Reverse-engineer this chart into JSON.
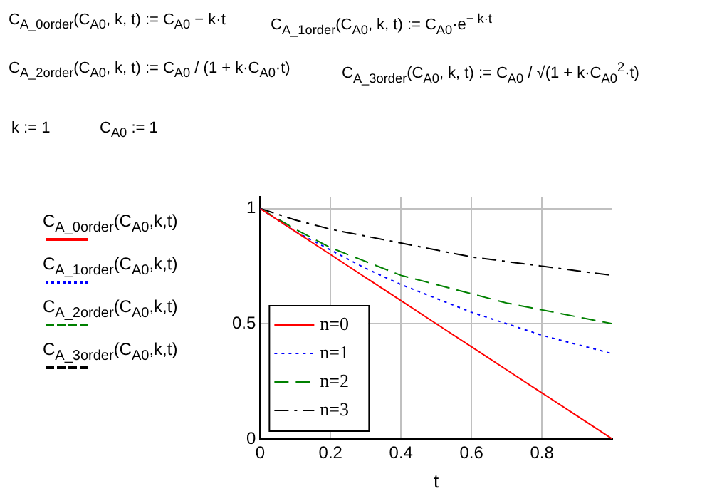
{
  "chart_data": {
    "type": "line",
    "annotations": [
      "C$_{A_0order}$(C$_{A0}$, k, t) := C$_{A0}$ − k·t",
      "C$_{A_1order}$(C$_{A0}$, k, t) := C$_{A0}$·e$^{− k·t}$",
      "C$_{A_2order}$(C$_{A0}$, k, t) := C$_{A0}$ / (1 + k·C$_{A0}$·t)",
      "C$_{A_3order}$(C$_{A0}$, k, t) := C$_{A0}$ / √(1 + k·C$_{A0}$$^{2}$·t)",
      "k := 1",
      "C$_{A0}$ := 1"
    ],
    "ylabel": "C$_{A_0order}$(C$_{A0}$,k,t)\nC$_{A_1order}$(C$_{A0}$,k,t)\nC$_{A_2order}$(C$_{A0}$,k,t)\nC$_{A_3order}$(C$_{A0}$,k,t)",
    "xlabel": "t",
    "x": [
      0,
      0.1,
      0.2,
      0.3,
      0.4,
      0.5,
      0.6,
      0.7,
      0.8,
      0.9,
      1
    ],
    "series": [
      {
        "name": "n=0",
        "color": "#ff0000",
        "line_style": "solid",
        "values": [
          1,
          0.9,
          0.8,
          0.7,
          0.6,
          0.5,
          0.4,
          0.3,
          0.2,
          0.1,
          0
        ]
      },
      {
        "name": "n=1",
        "color": "#0000ff",
        "line_style": "dotted",
        "values": [
          1,
          0.9,
          0.82,
          0.74,
          0.67,
          0.61,
          0.55,
          0.5,
          0.45,
          0.41,
          0.37
        ]
      },
      {
        "name": "n=2",
        "color": "#008000",
        "line_style": "dashed",
        "values": [
          1,
          0.91,
          0.83,
          0.77,
          0.71,
          0.67,
          0.63,
          0.59,
          0.56,
          0.53,
          0.5
        ]
      },
      {
        "name": "n=3",
        "color": "#000000",
        "line_style": "dashdot",
        "values": [
          1,
          0.95,
          0.91,
          0.88,
          0.85,
          0.82,
          0.79,
          0.77,
          0.75,
          0.73,
          0.71
        ]
      }
    ],
    "xlim": [
      0,
      1
    ],
    "xticks": [
      0,
      0.2,
      0.4,
      0.6,
      0.8
    ],
    "ylim": [
      0,
      1.05
    ],
    "yticks": [
      0,
      0.5,
      1
    ],
    "grid": true,
    "legend": "bottom left",
    "marker": "none"
  }
}
